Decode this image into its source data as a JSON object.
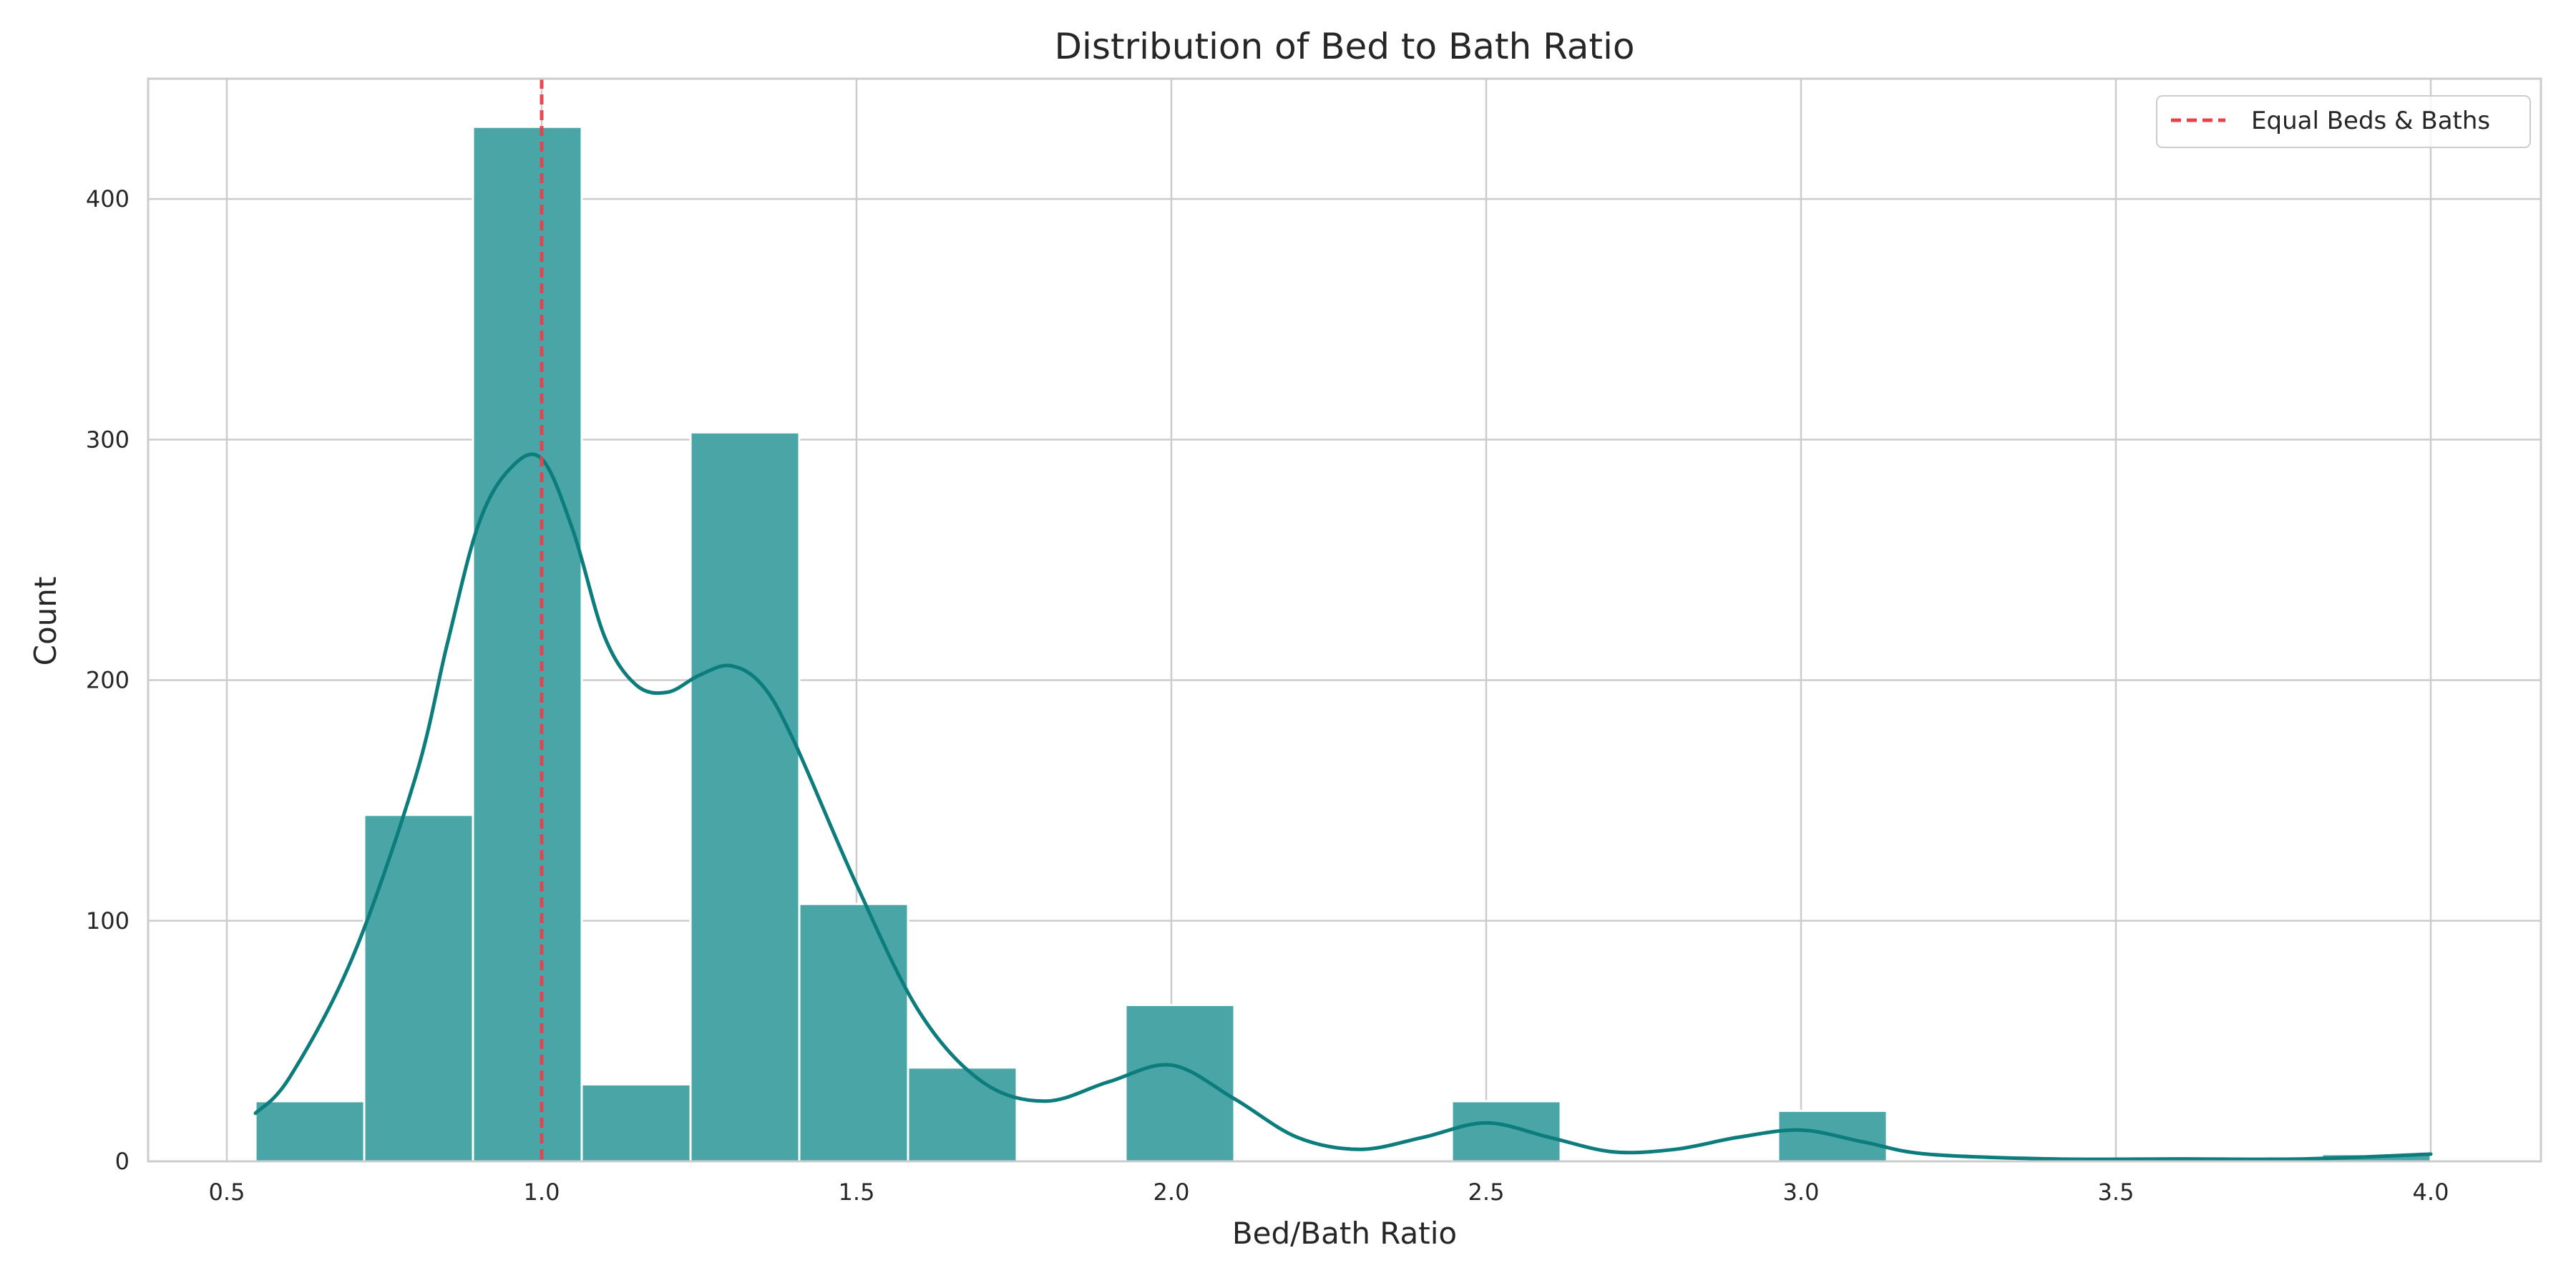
{
  "chart_data": {
    "type": "bar",
    "title": "Distribution of Bed to Bath Ratio",
    "xlabel": "Bed/Bath Ratio",
    "ylabel": "Count",
    "xlim": [
      0.375,
      4.175
    ],
    "ylim": [
      0,
      450
    ],
    "x_ticks": [
      0.5,
      1.0,
      1.5,
      2.0,
      2.5,
      3.0,
      3.5,
      4.0
    ],
    "x_tick_labels": [
      "0.5",
      "1.0",
      "1.5",
      "2.0",
      "2.5",
      "3.0",
      "3.5",
      "4.0"
    ],
    "y_ticks": [
      0,
      100,
      200,
      300,
      400
    ],
    "y_tick_labels": [
      "0",
      "100",
      "200",
      "300",
      "400"
    ],
    "grid": true,
    "bins": [
      {
        "x0": 0.5455,
        "x1": 0.7182,
        "count": 25
      },
      {
        "x0": 0.7182,
        "x1": 0.8909,
        "count": 144
      },
      {
        "x0": 0.8909,
        "x1": 1.0636,
        "count": 430
      },
      {
        "x0": 1.0636,
        "x1": 1.2364,
        "count": 32
      },
      {
        "x0": 1.2364,
        "x1": 1.4091,
        "count": 303
      },
      {
        "x0": 1.4091,
        "x1": 1.5818,
        "count": 107
      },
      {
        "x0": 1.5818,
        "x1": 1.7545,
        "count": 39
      },
      {
        "x0": 1.7545,
        "x1": 1.9273,
        "count": 0
      },
      {
        "x0": 1.9273,
        "x1": 2.1,
        "count": 65
      },
      {
        "x0": 2.1,
        "x1": 2.2727,
        "count": 0
      },
      {
        "x0": 2.2727,
        "x1": 2.4455,
        "count": 0
      },
      {
        "x0": 2.4455,
        "x1": 2.6182,
        "count": 25
      },
      {
        "x0": 2.6182,
        "x1": 2.7909,
        "count": 0
      },
      {
        "x0": 2.7909,
        "x1": 2.9636,
        "count": 0
      },
      {
        "x0": 2.9636,
        "x1": 3.1364,
        "count": 21
      },
      {
        "x0": 3.1364,
        "x1": 3.3091,
        "count": 0
      },
      {
        "x0": 3.3091,
        "x1": 3.4818,
        "count": 0
      },
      {
        "x0": 3.4818,
        "x1": 3.6545,
        "count": 0
      },
      {
        "x0": 3.6545,
        "x1": 3.8273,
        "count": 0
      },
      {
        "x0": 3.8273,
        "x1": 4.0,
        "count": 3
      }
    ],
    "kde": {
      "x": [
        0.5455,
        0.6,
        0.7,
        0.8,
        0.85,
        0.9,
        0.95,
        1.0,
        1.05,
        1.1,
        1.15,
        1.2,
        1.25,
        1.3,
        1.35,
        1.4,
        1.5,
        1.6,
        1.7,
        1.8,
        1.9,
        2.0,
        2.1,
        2.2,
        2.3,
        2.4,
        2.5,
        2.6,
        2.7,
        2.8,
        2.9,
        3.0,
        3.1,
        3.2,
        3.4,
        3.6,
        3.8,
        4.0
      ],
      "y": [
        20,
        35,
        85,
        160,
        215,
        265,
        288,
        292,
        262,
        218,
        198,
        195,
        202,
        206,
        198,
        175,
        115,
        62,
        33,
        25,
        33,
        40,
        26,
        10,
        5,
        10,
        16,
        10,
        4,
        5,
        10,
        13,
        8,
        3,
        1,
        1,
        1,
        3
      ]
    },
    "reference_line": {
      "x": 1.0,
      "label": "Equal Beds & Baths"
    },
    "legend": {
      "position": "top-right",
      "entries": [
        "Equal Beds & Baths"
      ]
    },
    "colors": {
      "bar_fill": "#4aa6a6",
      "bar_edge": "#ffffff",
      "kde_line": "#0c7c7c",
      "ref_line": "#e8404a",
      "grid": "#cccccc",
      "spine": "#cccccc",
      "text": "#262626"
    }
  }
}
